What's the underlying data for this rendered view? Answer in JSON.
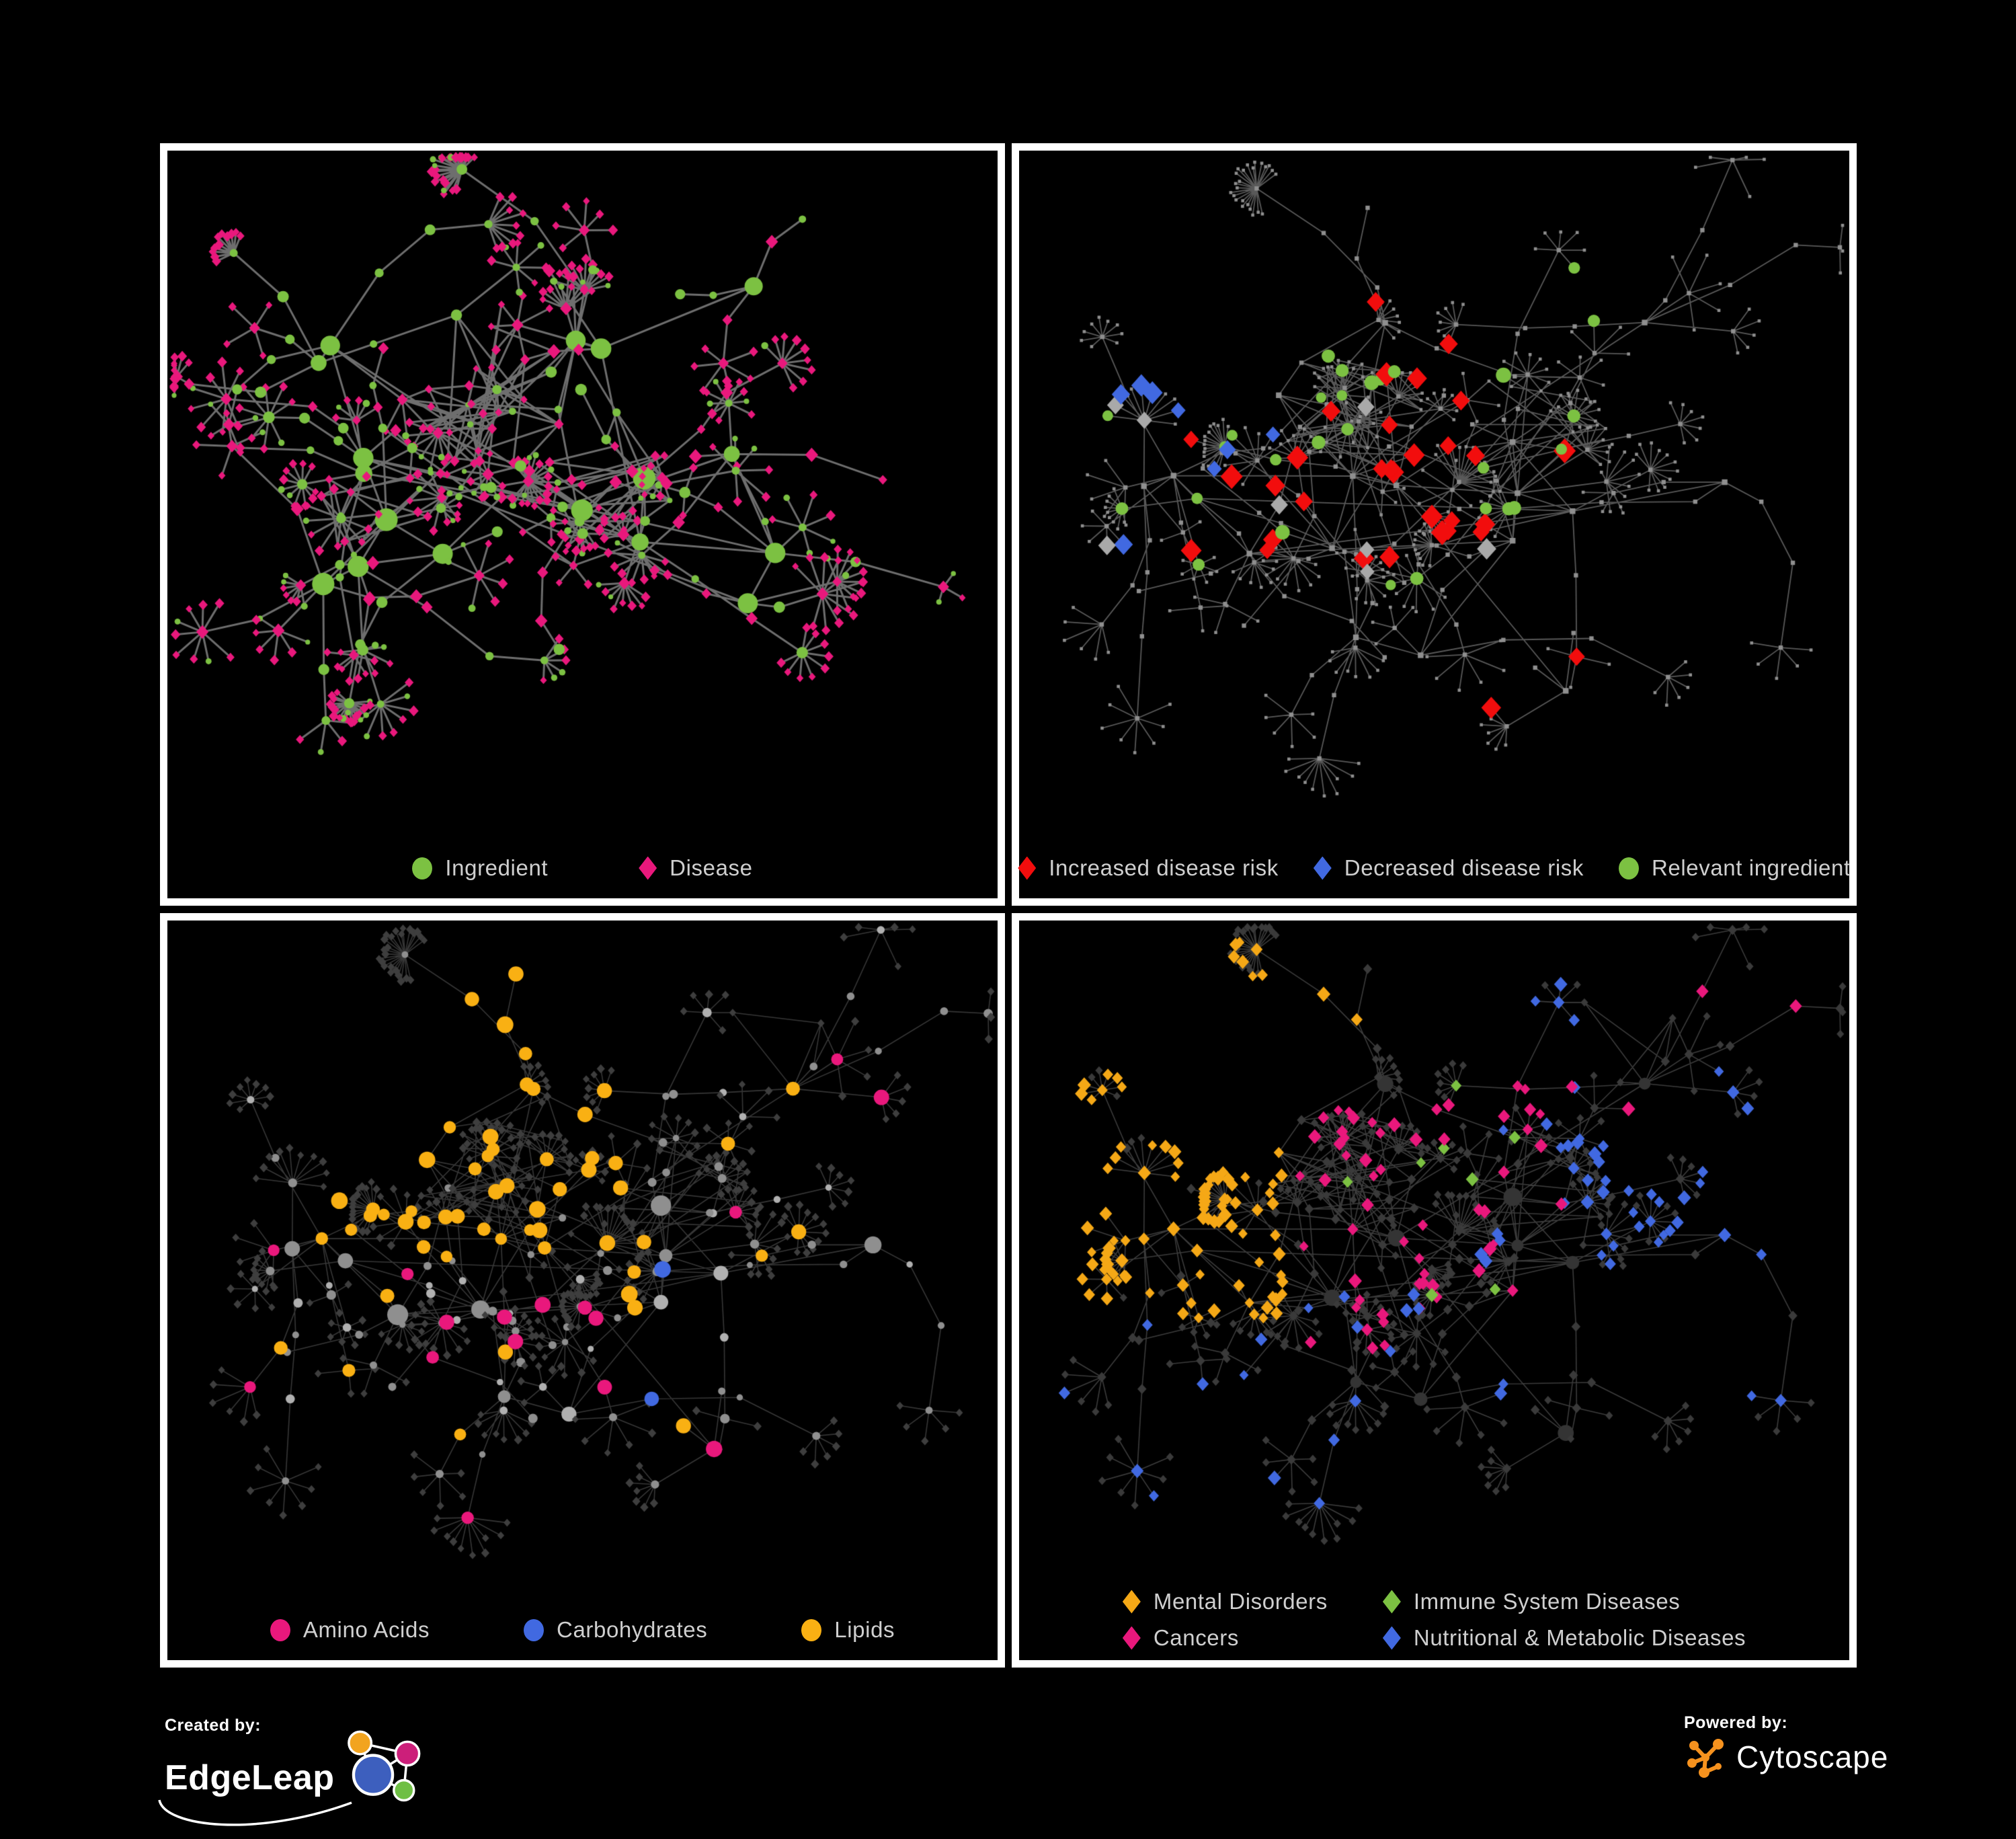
{
  "page": {
    "background": "#000000",
    "panel_border_color": "#ffffff",
    "legend_text_color": "#cfcfcf"
  },
  "panels": [
    {
      "id": "ingredient-disease",
      "legend": [
        {
          "label": "Ingredient",
          "shape": "circle",
          "color": "#7cc142"
        },
        {
          "label": "Disease",
          "shape": "diamond",
          "color": "#e9187c"
        }
      ],
      "network": {
        "style": "duo",
        "seed": 11,
        "hubs": 17,
        "dense_blobs": [
          [
            0.38,
            0.34,
            130,
            45
          ],
          [
            0.53,
            0.48,
            105,
            26
          ],
          [
            0.25,
            0.52,
            90,
            18
          ]
        ],
        "edge_color": "#7a7a7a",
        "edge_width": 3,
        "edge_alpha": 0.9,
        "ingredient_color": "#7cc142",
        "disease_color": "#e9187c",
        "branch_green_ratio": 0.5,
        "leaf_green_ratio": 0.2
      }
    },
    {
      "id": "disease-risk",
      "legend": [
        {
          "label": "Increased disease risk",
          "shape": "diamond",
          "color": "#f20d0d"
        },
        {
          "label": "Decreased disease risk",
          "shape": "diamond",
          "color": "#4169e1"
        },
        {
          "label": "Relevant ingredient",
          "shape": "circle",
          "color": "#7cc142"
        }
      ],
      "network": {
        "style": "risk",
        "seed": 77,
        "hubs": 18,
        "dense_blobs": [
          [
            0.4,
            0.38,
            135,
            50
          ],
          [
            0.62,
            0.42,
            110,
            28
          ],
          [
            0.74,
            0.17,
            85,
            16
          ]
        ],
        "edge_color": "#6f6f6f",
        "edge_width": 1.8,
        "edge_alpha": 0.8,
        "base_color": "#8f8f8f",
        "highlights": [
          {
            "shape": "diamond",
            "color": "#f20d0d",
            "count": 30,
            "size": 15,
            "region": [
              0.2,
              0.72,
              0.16,
              0.6
            ]
          },
          {
            "shape": "diamond",
            "color": "#f20d0d",
            "count": 4,
            "size": 14,
            "region": [
              0.55,
              0.8,
              0.62,
              0.85
            ]
          },
          {
            "shape": "diamond",
            "color": "#4169e1",
            "count": 8,
            "size": 14,
            "region": [
              0.12,
              0.33,
              0.22,
              0.58
            ]
          },
          {
            "shape": "diamond",
            "color": "#4169e1",
            "count": 2,
            "size": 13,
            "region": [
              0.82,
              0.95,
              0.12,
              0.22
            ]
          },
          {
            "shape": "diamond",
            "color": "#a9a9a9",
            "count": 8,
            "size": 13,
            "region": [
              0.1,
              0.68,
              0.18,
              0.62
            ]
          },
          {
            "shape": "circle",
            "color": "#7cc142",
            "count": 28,
            "size": 9,
            "region": [
              0.1,
              0.72,
              0.12,
              0.66
            ]
          }
        ]
      }
    },
    {
      "id": "nutrient-classes",
      "legend": [
        {
          "label": "Amino Acids",
          "shape": "circle",
          "color": "#e9187c"
        },
        {
          "label": "Carbohydrates",
          "shape": "circle",
          "color": "#4169e1"
        },
        {
          "label": "Lipids",
          "shape": "circle",
          "color": "#f9b013"
        }
      ],
      "network": {
        "style": "classes",
        "seed": 77,
        "hubs": 18,
        "dense_blobs": [
          [
            0.4,
            0.38,
            135,
            50
          ],
          [
            0.62,
            0.42,
            110,
            28
          ],
          [
            0.74,
            0.17,
            85,
            16
          ]
        ],
        "edge_color": "#6d6d6d",
        "edge_width": 1.6,
        "edge_alpha": 0.5,
        "leaf_color": "#3e3e3e",
        "node_color": "#8f8f8f",
        "highlights": [
          {
            "shape": "circle",
            "color": "#f9b013",
            "count": 55,
            "size": 10,
            "region": [
              0.18,
              0.55,
              0.08,
              0.5
            ]
          },
          {
            "shape": "circle",
            "color": "#f9b013",
            "count": 16,
            "size": 10,
            "region": [
              0.1,
              0.9,
              0.1,
              0.9
            ]
          },
          {
            "shape": "circle",
            "color": "#4169e1",
            "count": 10,
            "size": 10,
            "region": [
              0.22,
              0.5,
              0.1,
              0.38
            ]
          },
          {
            "shape": "circle",
            "color": "#4169e1",
            "count": 3,
            "size": 10,
            "region": [
              0.55,
              0.85,
              0.4,
              0.75
            ]
          },
          {
            "shape": "circle",
            "color": "#e9187c",
            "count": 14,
            "size": 10,
            "region": [
              0.05,
              0.75,
              0.35,
              0.95
            ]
          },
          {
            "shape": "circle",
            "color": "#e9187c",
            "count": 4,
            "size": 10,
            "region": [
              0.3,
              0.9,
              0.05,
              0.3
            ]
          }
        ]
      }
    },
    {
      "id": "disease-categories",
      "legend_layout": "grid",
      "legend": [
        {
          "label": "Mental Disorders",
          "shape": "diamond",
          "color": "#f5a816"
        },
        {
          "label": "Immune System Diseases",
          "shape": "diamond",
          "color": "#7cc142"
        },
        {
          "label": "Cancers",
          "shape": "diamond",
          "color": "#e9187c"
        },
        {
          "label": "Nutritional & Metabolic Diseases",
          "shape": "diamond",
          "color": "#4169e1"
        }
      ],
      "network": {
        "style": "diseases",
        "seed": 77,
        "hubs": 18,
        "dense_blobs": [
          [
            0.4,
            0.38,
            135,
            50
          ],
          [
            0.62,
            0.42,
            110,
            28
          ],
          [
            0.74,
            0.17,
            85,
            16
          ]
        ],
        "edge_color": "#787878",
        "edge_width": 1.6,
        "edge_alpha": 0.5,
        "base_color": "#3a3a3a",
        "highlights": [
          {
            "shape": "diamond",
            "color": "#f5a816",
            "count": 95,
            "size": 9,
            "region": [
              0.03,
              0.33,
              0.2,
              0.62
            ]
          },
          {
            "shape": "diamond",
            "color": "#f5a816",
            "count": 10,
            "size": 9,
            "region": [
              0.1,
              0.6,
              0.02,
              0.2
            ]
          },
          {
            "shape": "diamond",
            "color": "#e9187c",
            "count": 55,
            "size": 9,
            "region": [
              0.33,
              0.66,
              0.28,
              0.68
            ]
          },
          {
            "shape": "diamond",
            "color": "#e9187c",
            "count": 8,
            "size": 9,
            "region": [
              0.6,
              0.95,
              0.1,
              0.3
            ]
          },
          {
            "shape": "diamond",
            "color": "#4169e1",
            "count": 50,
            "size": 9,
            "region": [
              0.55,
              0.97,
              0.03,
              0.75
            ]
          },
          {
            "shape": "diamond",
            "color": "#4169e1",
            "count": 18,
            "size": 9,
            "region": [
              0.05,
              0.55,
              0.55,
              0.95
            ]
          },
          {
            "shape": "diamond",
            "color": "#7cc142",
            "count": 8,
            "size": 9,
            "region": [
              0.3,
              0.6,
              0.22,
              0.6
            ]
          }
        ]
      }
    }
  ],
  "footer": {
    "created_by": {
      "label": "Created by:",
      "brand": "EdgeLeap"
    },
    "powered_by": {
      "label": "Powered by:",
      "brand": "Cytoscape",
      "logo_color": "#f6921e"
    },
    "edgeleap_logo_colors": {
      "blue": "#3d5fbe",
      "orange": "#f2a41f",
      "magenta": "#cc1f7a",
      "green": "#6fbf44"
    }
  }
}
